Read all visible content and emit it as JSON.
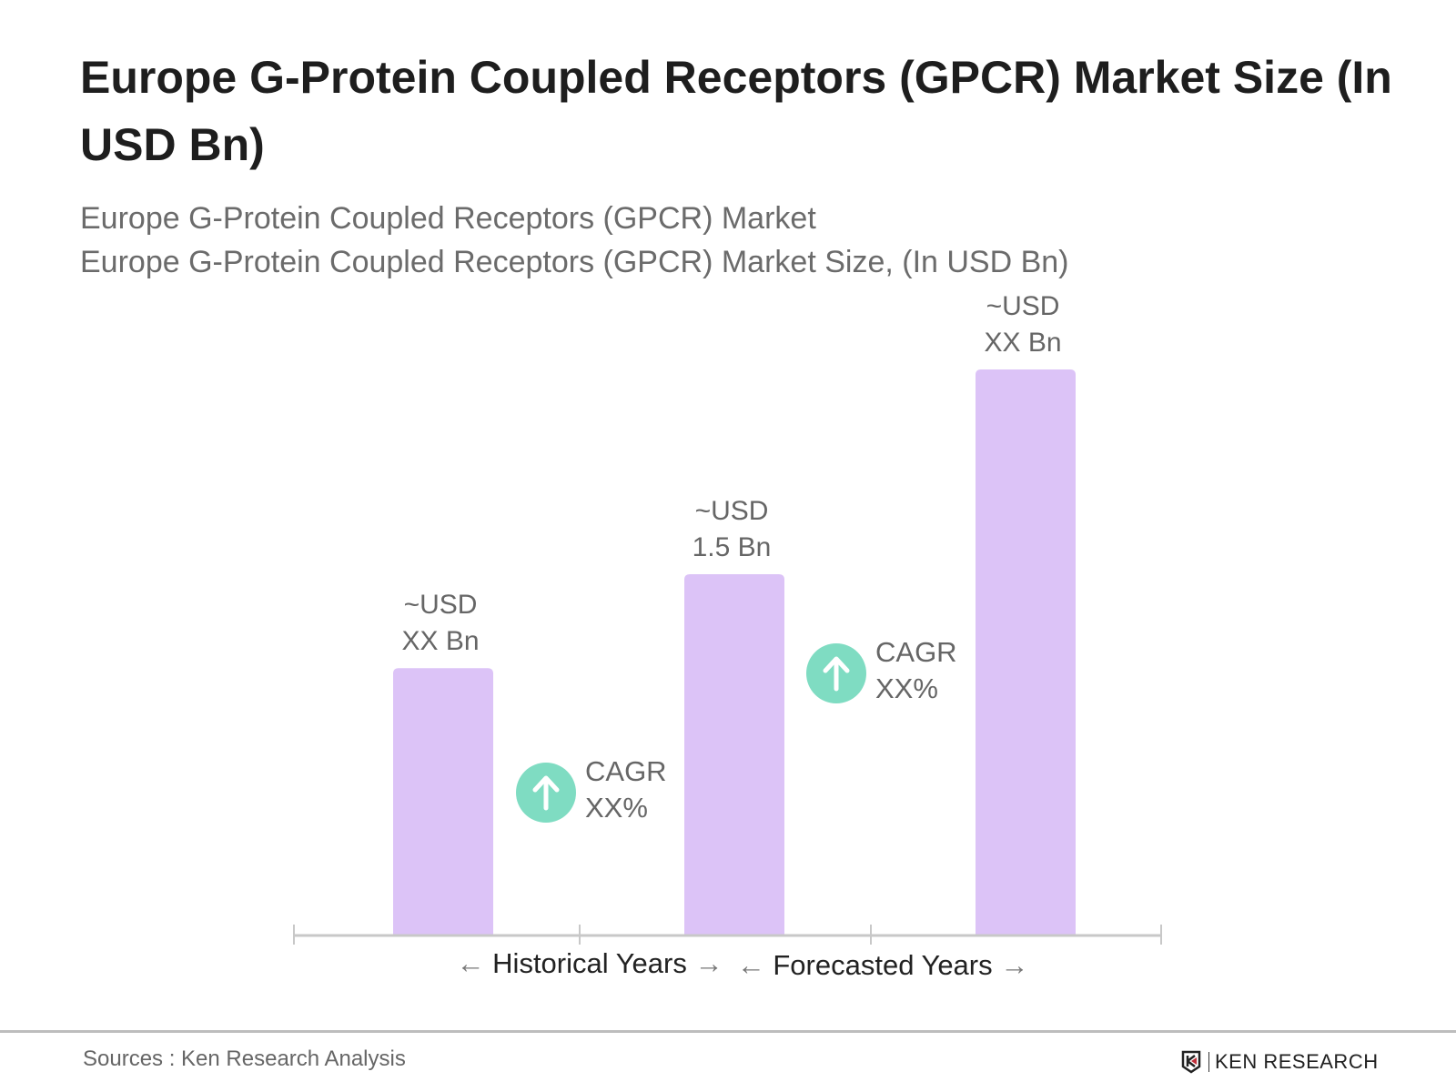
{
  "title": "Europe G-Protein Coupled Receptors (GPCR) Market Size (In USD Bn)",
  "subtitle_1": "Europe G-Protein Coupled Receptors (GPCR) Market",
  "subtitle_2": "Europe G-Protein Coupled Receptors (GPCR) Market Size, (In USD Bn)",
  "chart_data": {
    "type": "bar",
    "title": "Europe G-Protein Coupled Receptors (GPCR) Market Size (In USD Bn)",
    "categories": [
      "",
      "",
      ""
    ],
    "values": [
      1.11,
      1.5,
      2.35
    ],
    "data_labels": [
      [
        "~USD",
        "XX Bn"
      ],
      [
        "~USD",
        "1.5 Bn"
      ],
      [
        "~USD",
        "XX Bn"
      ]
    ],
    "ylim": [
      0,
      2.4
    ],
    "grid": false,
    "bar_color": "#dcc3f7",
    "axis_color": "#c8c8c8",
    "cagr": [
      {
        "line1": "CAGR",
        "line2": "XX%",
        "between": [
          0,
          1
        ]
      },
      {
        "line1": "CAGR",
        "line2": "XX%",
        "between": [
          1,
          2
        ]
      }
    ],
    "cagr_color": "#7fdcc2",
    "periods": [
      {
        "label": "Historical Years",
        "left_arrow": "←",
        "right_arrow": "→"
      },
      {
        "label": "Forecasted Years",
        "left_arrow": "←",
        "right_arrow": "→"
      }
    ]
  },
  "footer": {
    "source": "Sources : Ken Research Analysis",
    "logo_text": "KEN RESEARCH"
  }
}
